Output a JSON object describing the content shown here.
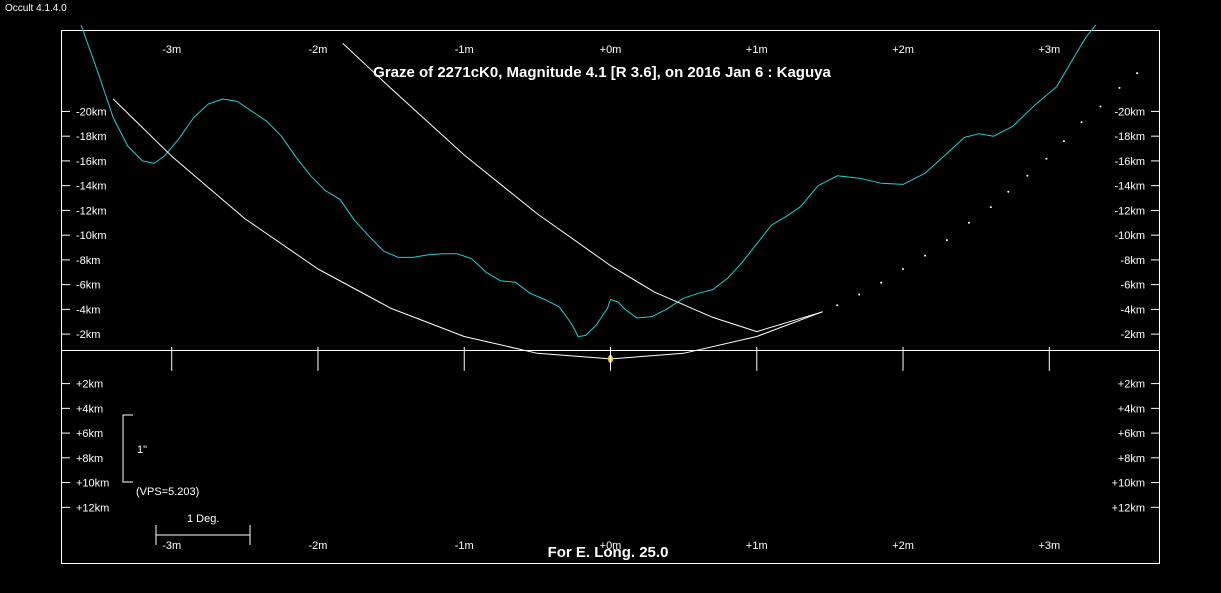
{
  "app": {
    "version_label": "Occult 4.1.4.0"
  },
  "chart_data": {
    "type": "line",
    "title": "Graze of  2271cK0,  Magnitude 4.1 [R 3.6],  on 2016 Jan  6  :  Kaguya",
    "footer": "For E. Long. 25.0",
    "scale_bar_label": "1\"",
    "vps_label": "(VPS=5.203)",
    "degree_bar_label": "1 Deg.",
    "x_unit": "minutes",
    "y_unit": "km",
    "xlim": [
      -3.75,
      3.75
    ],
    "ylim": [
      -26.5,
      16.5
    ],
    "x_ticks": [
      {
        "value": -3,
        "label": "-3m"
      },
      {
        "value": -2,
        "label": "-2m"
      },
      {
        "value": -1,
        "label": "-1m"
      },
      {
        "value": 0,
        "label": "+0m"
      },
      {
        "value": 1,
        "label": "+1m"
      },
      {
        "value": 2,
        "label": "+2m"
      },
      {
        "value": 3,
        "label": "+3m"
      }
    ],
    "y_ticks": [
      {
        "value": -20,
        "label": "-20km"
      },
      {
        "value": -18,
        "label": "-18km"
      },
      {
        "value": -16,
        "label": "-16km"
      },
      {
        "value": -14,
        "label": "-14km"
      },
      {
        "value": -12,
        "label": "-12km"
      },
      {
        "value": -10,
        "label": "-10km"
      },
      {
        "value": -8,
        "label": "-8km"
      },
      {
        "value": -6,
        "label": "-6km"
      },
      {
        "value": -4,
        "label": "-4km"
      },
      {
        "value": -2,
        "label": "-2km"
      },
      {
        "value": 2,
        "label": "+2km"
      },
      {
        "value": 4,
        "label": "+4km"
      },
      {
        "value": 6,
        "label": "+6km"
      },
      {
        "value": 8,
        "label": "+8km"
      },
      {
        "value": 10,
        "label": "+10km"
      },
      {
        "value": 12,
        "label": "+12km"
      }
    ],
    "series": [
      {
        "color": "#1ecfcf",
        "style": "solid",
        "points": [
          [
            -3.62,
            -27.0
          ],
          [
            -3.5,
            -23.0
          ],
          [
            -3.4,
            -19.5
          ],
          [
            -3.3,
            -17.2
          ],
          [
            -3.2,
            -16.0
          ],
          [
            -3.12,
            -15.8
          ],
          [
            -3.05,
            -16.4
          ],
          [
            -2.95,
            -17.8
          ],
          [
            -2.85,
            -19.5
          ],
          [
            -2.75,
            -20.6
          ],
          [
            -2.65,
            -21.0
          ],
          [
            -2.55,
            -20.8
          ],
          [
            -2.45,
            -20.0
          ],
          [
            -2.35,
            -19.2
          ],
          [
            -2.25,
            -18.0
          ],
          [
            -2.15,
            -16.3
          ],
          [
            -2.05,
            -14.8
          ],
          [
            -1.95,
            -13.6
          ],
          [
            -1.85,
            -12.9
          ],
          [
            -1.75,
            -11.2
          ],
          [
            -1.65,
            -9.9
          ],
          [
            -1.55,
            -8.7
          ],
          [
            -1.45,
            -8.2
          ],
          [
            -1.35,
            -8.2
          ],
          [
            -1.25,
            -8.4
          ],
          [
            -1.15,
            -8.5
          ],
          [
            -1.05,
            -8.5
          ],
          [
            -0.95,
            -8.1
          ],
          [
            -0.85,
            -7.0
          ],
          [
            -0.75,
            -6.3
          ],
          [
            -0.65,
            -6.2
          ],
          [
            -0.55,
            -5.3
          ],
          [
            -0.45,
            -4.8
          ],
          [
            -0.35,
            -4.2
          ],
          [
            -0.27,
            -2.9
          ],
          [
            -0.22,
            -1.8
          ],
          [
            -0.17,
            -1.9
          ],
          [
            -0.1,
            -2.7
          ],
          [
            -0.02,
            -4.1
          ],
          [
            0.0,
            -4.8
          ],
          [
            0.05,
            -4.6
          ],
          [
            0.1,
            -4.0
          ],
          [
            0.18,
            -3.3
          ],
          [
            0.28,
            -3.4
          ],
          [
            0.38,
            -4.0
          ],
          [
            0.5,
            -4.9
          ],
          [
            0.6,
            -5.3
          ],
          [
            0.7,
            -5.6
          ],
          [
            0.8,
            -6.5
          ],
          [
            0.9,
            -7.8
          ],
          [
            1.0,
            -9.3
          ],
          [
            1.1,
            -10.8
          ],
          [
            1.2,
            -11.5
          ],
          [
            1.3,
            -12.3
          ],
          [
            1.42,
            -14.0
          ],
          [
            1.55,
            -14.8
          ],
          [
            1.7,
            -14.6
          ],
          [
            1.85,
            -14.2
          ],
          [
            2.0,
            -14.1
          ],
          [
            2.15,
            -15.0
          ],
          [
            2.3,
            -16.6
          ],
          [
            2.42,
            -17.9
          ],
          [
            2.52,
            -18.2
          ],
          [
            2.62,
            -18.0
          ],
          [
            2.75,
            -18.8
          ],
          [
            2.9,
            -20.5
          ],
          [
            3.05,
            -22.0
          ],
          [
            3.15,
            -24.0
          ],
          [
            3.25,
            -26.0
          ],
          [
            3.32,
            -27.0
          ]
        ]
      },
      {
        "color": "#ffffff",
        "style": "solid",
        "points": [
          [
            -3.4,
            -21.0
          ],
          [
            -3.0,
            -16.38
          ],
          [
            -2.5,
            -11.34
          ],
          [
            -2.0,
            -7.26
          ],
          [
            -1.5,
            -4.08
          ],
          [
            -1.0,
            -1.81
          ],
          [
            -0.5,
            -0.45
          ],
          [
            0.0,
            0.0
          ],
          [
            0.5,
            -0.45
          ],
          [
            1.0,
            -1.81
          ],
          [
            1.45,
            -3.81
          ]
        ]
      },
      {
        "color": "#ffffff",
        "style": "dotted",
        "points": [
          [
            1.55,
            -4.33
          ],
          [
            1.7,
            -5.2
          ],
          [
            1.85,
            -6.16
          ],
          [
            2.0,
            -7.26
          ],
          [
            2.15,
            -8.35
          ],
          [
            2.3,
            -9.6
          ],
          [
            2.45,
            -11.0
          ],
          [
            2.6,
            -12.27
          ],
          [
            2.72,
            -13.5
          ],
          [
            2.85,
            -14.8
          ],
          [
            2.98,
            -16.18
          ],
          [
            3.1,
            -17.6
          ],
          [
            3.22,
            -19.14
          ],
          [
            3.35,
            -20.4
          ],
          [
            3.48,
            -21.9
          ],
          [
            3.6,
            -23.1
          ]
        ]
      },
      {
        "color": "#ffffff",
        "style": "solid",
        "points": [
          [
            -1.83,
            -25.5
          ],
          [
            -1.5,
            -21.85
          ],
          [
            -1.0,
            -16.48
          ],
          [
            -0.5,
            -11.72
          ],
          [
            0.0,
            -7.54
          ],
          [
            0.3,
            -5.4
          ],
          [
            0.7,
            -3.35
          ],
          [
            1.0,
            -2.2
          ],
          [
            1.45,
            -3.8
          ]
        ]
      }
    ],
    "marker": {
      "x": 0.0,
      "y": 0.0,
      "color": "#ffd400"
    },
    "grid": false
  }
}
